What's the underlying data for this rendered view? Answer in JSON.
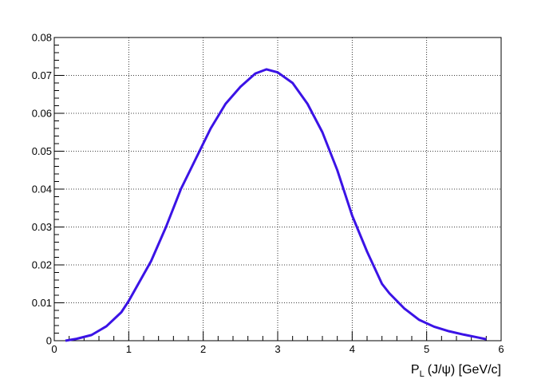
{
  "chart_data": {
    "type": "line",
    "xlabel": {
      "main": "P",
      "sub": "L",
      "rest": "(J/ψ) [GeV/c]"
    },
    "x": [
      0.15,
      0.3,
      0.5,
      0.7,
      0.9,
      1.0,
      1.1,
      1.3,
      1.5,
      1.7,
      1.9,
      2.1,
      2.3,
      2.5,
      2.7,
      2.85,
      3.0,
      3.2,
      3.4,
      3.6,
      3.8,
      4.0,
      4.2,
      4.4,
      4.5,
      4.7,
      4.9,
      5.1,
      5.3,
      5.5,
      5.7,
      5.8
    ],
    "series": [
      {
        "color": "#3b13e6",
        "values": [
          0,
          0.0005,
          0.0015,
          0.0038,
          0.0075,
          0.0105,
          0.014,
          0.021,
          0.03,
          0.04,
          0.048,
          0.056,
          0.0625,
          0.067,
          0.0705,
          0.0716,
          0.0708,
          0.068,
          0.0625,
          0.055,
          0.045,
          0.033,
          0.0235,
          0.015,
          0.0125,
          0.0085,
          0.0055,
          0.0037,
          0.0025,
          0.0016,
          0.0008,
          0.0004
        ]
      }
    ],
    "xlim": [
      0,
      6
    ],
    "xticks": [
      0,
      1,
      2,
      3,
      4,
      5,
      6
    ],
    "ylim": [
      0,
      0.08
    ],
    "yticks": [
      0,
      0.01,
      0.02,
      0.03,
      0.04,
      0.05,
      0.06,
      0.07,
      0.08
    ],
    "grid": true
  }
}
